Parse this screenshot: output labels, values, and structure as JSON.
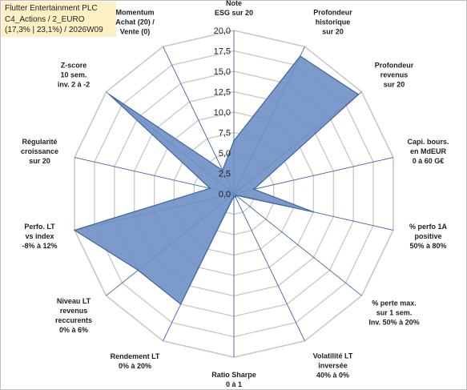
{
  "title_lines": [
    "Flutter Entertainment PLC",
    "C4_Actions / 2_EURO",
    "(17,3% | 23,1%) / 2026W09"
  ],
  "colors": {
    "fill": "#6f90c4",
    "stroke": "#3f63a5",
    "grid": "#c8c8c8",
    "spoke": "#3f63a5",
    "title_bg": "#fdf0c4"
  },
  "chart_data": {
    "type": "radar",
    "title": "Flutter Entertainment PLC",
    "rmin": 0,
    "rmax": 20,
    "tick_step": 2.5,
    "tick_labels": [
      "0,0",
      "2,5",
      "5,0",
      "7,5",
      "10,0",
      "12,5",
      "15,0",
      "17,5",
      "20,0"
    ],
    "grid": true,
    "axes": [
      {
        "label": [
          "Note",
          "ESG sur 20"
        ],
        "value": 6.5
      },
      {
        "label": [
          "Profondeur",
          "historique",
          "sur 20"
        ],
        "value": 18.7
      },
      {
        "label": [
          "Profondeur",
          "revenus",
          "sur 20"
        ],
        "value": 19.5
      },
      {
        "label": [
          "Capi. bours.",
          "en MdEUR",
          "0 à 60 G€"
        ],
        "value": 2.5
      },
      {
        "label": [
          "% perfo 1A",
          "positive",
          "50% à 80%"
        ],
        "value": 10.0
      },
      {
        "label": [
          "% perte max.",
          "sur 1 sem.",
          "Inv. 50% à 20%"
        ],
        "value": 0.3
      },
      {
        "label": [
          "Volatilité LT",
          "inversée",
          "40% à 0%"
        ],
        "value": 0.5
      },
      {
        "label": [
          "Ratio Sharpe",
          "0 à 1"
        ],
        "value": 0.3
      },
      {
        "label": [
          "Rendement LT",
          "0% à 20%"
        ],
        "value": 15.0
      },
      {
        "label": [
          "Niveau LT",
          "revenus",
          "reccurents",
          "0% à 6%"
        ],
        "value": 15.0
      },
      {
        "label": [
          "Perfo. LT",
          "vs index",
          "-8% à 12%"
        ],
        "value": 20.0
      },
      {
        "label": [
          "Régularité",
          "croissance",
          "sur 20"
        ],
        "value": 3.0
      },
      {
        "label": [
          "Z-score",
          "10 sem.",
          "inv. 2 à -2"
        ],
        "value": 19.5
      },
      {
        "label": [
          "Momentum",
          "Achat (20) /",
          "Vente (0)"
        ],
        "value": 3.2
      }
    ]
  }
}
